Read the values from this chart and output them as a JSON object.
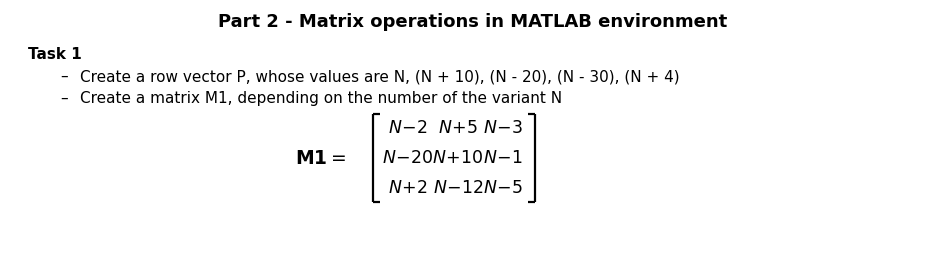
{
  "title": "Part 2 - Matrix operations in MATLAB environment",
  "task_label": "Task 1",
  "bullet1": "Create a row vector P, whose values are N, (N + 10), (N - 20), (N - 30), (N + 4)",
  "bullet2": "Create a matrix M1, depending on the number of the variant N",
  "matrix_rows": [
    [
      "N-2",
      "N+5",
      "N-3"
    ],
    [
      "N-20",
      "N+10",
      "N-1"
    ],
    [
      "N+2",
      "N-12",
      "N-5"
    ]
  ],
  "bg_color": "#ffffff",
  "text_color": "#000000",
  "title_fontsize": 13.0,
  "body_fontsize": 11.0,
  "matrix_fontsize": 12.5
}
